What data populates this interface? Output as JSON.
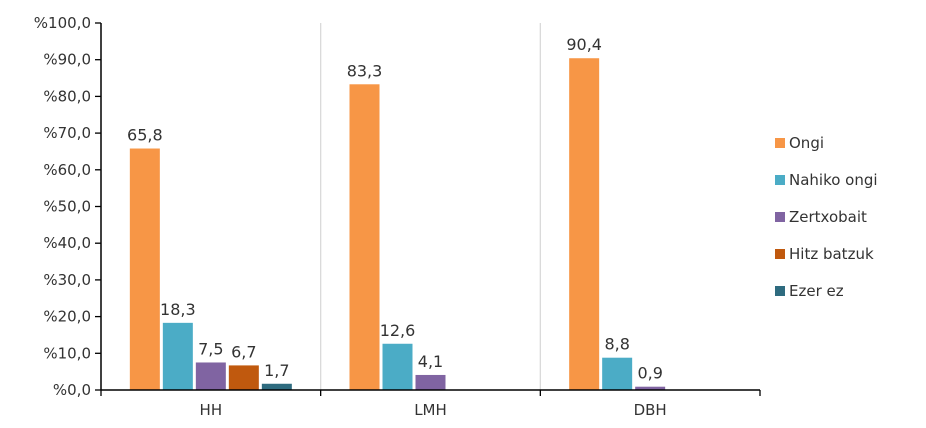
{
  "chart_data": {
    "type": "bar",
    "categories": [
      "HH",
      "LMH",
      "DBH"
    ],
    "series": [
      {
        "name": "Ongi",
        "color": "#F79646",
        "values": [
          65.8,
          83.3,
          90.4
        ],
        "labels": [
          "65,8",
          "83,3",
          "90,4"
        ]
      },
      {
        "name": "Nahiko ongi",
        "color": "#4BACC6",
        "values": [
          18.3,
          12.6,
          8.8
        ],
        "labels": [
          "18,3",
          "12,6",
          "8,8"
        ]
      },
      {
        "name": "Zertxobait",
        "color": "#8064A2",
        "values": [
          7.5,
          4.1,
          0.9
        ],
        "labels": [
          "7,5",
          "4,1",
          "0,9"
        ]
      },
      {
        "name": "Hitz batzuk",
        "color": "#C0590E",
        "values": [
          6.7,
          0,
          0
        ],
        "labels": [
          "6,7",
          "",
          ""
        ]
      },
      {
        "name": "Ezer ez",
        "color": "#2E6B7F",
        "values": [
          1.7,
          0,
          0
        ],
        "labels": [
          "1,7",
          "",
          ""
        ]
      }
    ],
    "y_ticks": [
      "%0,0",
      "%10,0",
      "%20,0",
      "%30,0",
      "%40,0",
      "%50,0",
      "%60,0",
      "%70,0",
      "%80,0",
      "%90,0",
      "%100,0"
    ],
    "ylim": [
      0,
      100
    ],
    "grid": "vertical lines between categories",
    "legend": "right",
    "title": "",
    "xlabel": "",
    "ylabel": ""
  }
}
